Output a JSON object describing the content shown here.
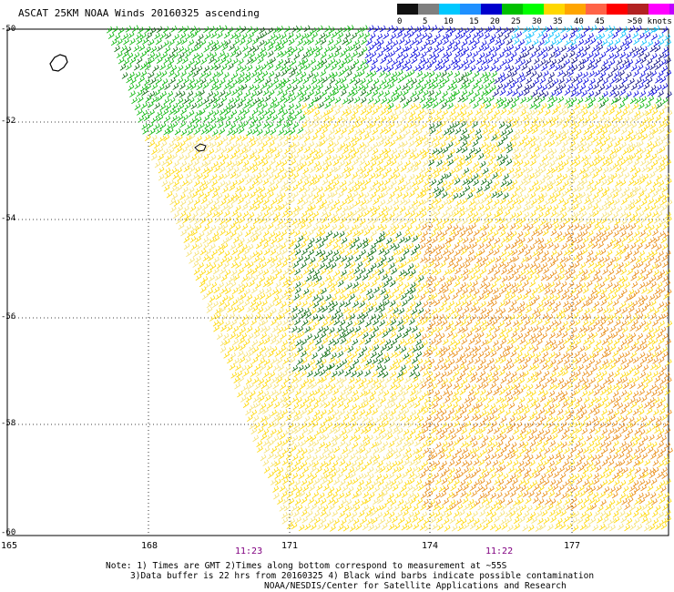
{
  "title": "ASCAT 25KM NOAA Winds 20160325 ascending",
  "colorbar": {
    "colors": [
      "#111111",
      "#7f7f7f",
      "#00c8ff",
      "#1e90ff",
      "#0000cd",
      "#00c000",
      "#00ff00",
      "#ffd700",
      "#ffa500",
      "#ff6347",
      "#ff0000",
      "#b22222",
      "#ff00ff",
      "#c000ff",
      "#4b0082"
    ],
    "labels": [
      "0",
      "5",
      "10",
      "15",
      "20",
      "25",
      "30",
      "35",
      "40",
      "45",
      ">50 knots"
    ]
  },
  "lat_labels": [
    "-50",
    "-52",
    "-54",
    "-56",
    "-58",
    "-60"
  ],
  "lon_labels": [
    "165",
    "168",
    "171",
    "174",
    "177"
  ],
  "time_labels": [
    "11:23",
    "11:22"
  ],
  "notes": [
    "Note: 1) Times are GMT 2)Times along bottom correspond to measurement at ~55S",
    "3)Data buffer is 22 hrs from 20160325 4) Black wind barbs indicate possible contamination",
    "NOAA/NESDIS/Center for Satellite Applications and Research"
  ],
  "barb_colors": {
    "dark_green": "#006400",
    "green": "#00b400",
    "yellow": "#ffd700",
    "light_yellow": "#f5e070",
    "orange": "#e88a10",
    "blue": "#0000dd",
    "cyan": "#00bfff",
    "navy": "#000080"
  }
}
